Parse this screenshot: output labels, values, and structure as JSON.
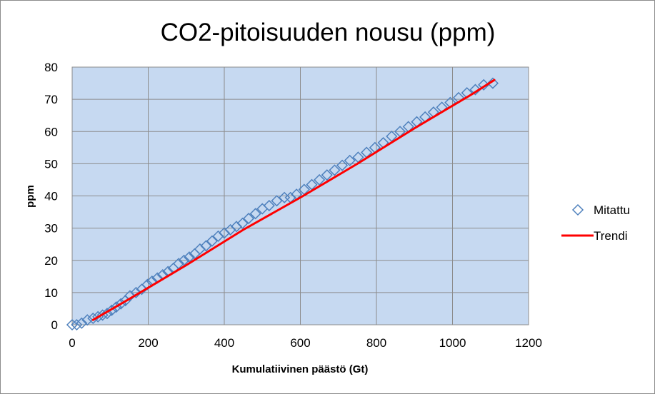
{
  "chart_data": {
    "type": "scatter",
    "title": "CO2-pitoisuuden nousu (ppm)",
    "xlabel": "Kumulatiivinen päästö (Gt)",
    "ylabel": "ppm",
    "xlim": [
      0,
      1200
    ],
    "ylim": [
      0,
      80
    ],
    "xticks": [
      "0",
      "200",
      "400",
      "600",
      "800",
      "1000",
      "1200"
    ],
    "yticks": [
      "0",
      "10",
      "20",
      "30",
      "40",
      "50",
      "60",
      "70",
      "80"
    ],
    "grid": true,
    "plot_background": "#c6d9f1",
    "legend_position": "right",
    "series": [
      {
        "name": "Mitattu",
        "kind": "markers",
        "marker": "diamond",
        "color": "#4f81bd",
        "x": [
          0,
          12,
          25,
          40,
          55,
          68,
          80,
          92,
          104,
          116,
          128,
          140,
          152,
          168,
          183,
          198,
          210,
          224,
          238,
          252,
          266,
          280,
          294,
          308,
          322,
          336,
          352,
          368,
          384,
          400,
          416,
          432,
          448,
          464,
          482,
          500,
          518,
          538,
          558,
          574,
          590,
          610,
          630,
          650,
          670,
          690,
          710,
          730,
          752,
          774,
          796,
          818,
          840,
          862,
          884,
          906,
          928,
          950,
          972,
          994,
          1016,
          1038,
          1060,
          1082,
          1106
        ],
        "y": [
          0,
          0,
          0.5,
          1.5,
          2,
          2.5,
          3,
          3.5,
          4.5,
          5.5,
          6.5,
          7.5,
          9,
          10,
          11,
          12.5,
          13.5,
          14.5,
          15.5,
          16.5,
          17.5,
          19,
          20,
          21,
          22,
          23.5,
          24.5,
          26,
          27.5,
          28.5,
          29.5,
          30.5,
          31.5,
          33,
          34.5,
          36,
          37,
          38.5,
          39.5,
          39.5,
          40.5,
          42,
          43.5,
          45,
          46.5,
          48,
          49.5,
          51,
          52,
          53.5,
          55,
          56.5,
          58.5,
          60,
          61.5,
          63,
          64.5,
          66,
          67.5,
          69,
          70.5,
          72,
          73,
          74.5,
          75
        ]
      },
      {
        "name": "Trendi",
        "kind": "line",
        "color": "#ff0000",
        "x": [
          55,
          150,
          300,
          450,
          600,
          750,
          900,
          1050,
          1110
        ],
        "y": [
          1.5,
          8,
          18.5,
          29.5,
          39.5,
          50,
          61,
          71.5,
          76
        ]
      }
    ]
  }
}
